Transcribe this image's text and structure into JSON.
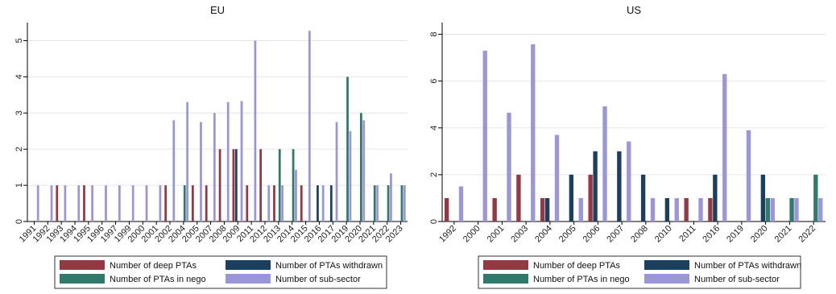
{
  "chart_data": [
    {
      "type": "bar",
      "title": "EU",
      "categories": [
        "1991",
        "1992",
        "1993",
        "1994",
        "1995",
        "1996",
        "1997",
        "1999",
        "2000",
        "2001",
        "2002",
        "2004",
        "2005",
        "2007",
        "2008",
        "2009",
        "2011",
        "2012",
        "2013",
        "2014",
        "2015",
        "2016",
        "2017",
        "2019",
        "2020",
        "2021",
        "2022",
        "2023"
      ],
      "series": [
        {
          "name": "Number of deep PTAs",
          "values": [
            0,
            0,
            1,
            0,
            1,
            0,
            0,
            0,
            0,
            0,
            1,
            0,
            1,
            1,
            2,
            2,
            1,
            2,
            1,
            0,
            1,
            0,
            0,
            0,
            0,
            0,
            0,
            0
          ]
        },
        {
          "name": "Number of PTAs withdrawn",
          "values": [
            0,
            0,
            0,
            0,
            0,
            0,
            0,
            0,
            0,
            0,
            0,
            0,
            0,
            0,
            0,
            2,
            0,
            0,
            0,
            0,
            0,
            1,
            1,
            0,
            0,
            0,
            0,
            0
          ]
        },
        {
          "name": "Number of PTAs in nego",
          "values": [
            0,
            0,
            0,
            0,
            0,
            0,
            0,
            0,
            0,
            0,
            0,
            1,
            0,
            0,
            0,
            0,
            0,
            0,
            2,
            2,
            0,
            0,
            0,
            4,
            3,
            1,
            1,
            1
          ]
        },
        {
          "name": "Number of sub-sector",
          "values": [
            1,
            1,
            1,
            1,
            1,
            1,
            1,
            1,
            1,
            1,
            2.8,
            3.3,
            2.75,
            3,
            3.3,
            3.33,
            5,
            1,
            1,
            1.43,
            5.27,
            1,
            2.75,
            2.5,
            2.8,
            1,
            1.33,
            1
          ]
        }
      ],
      "ylim": [
        0,
        5.5
      ],
      "yticks": [
        0,
        1,
        2,
        3,
        4,
        5
      ],
      "grid": true,
      "xlabel": "",
      "ylabel": ""
    },
    {
      "type": "bar",
      "title": "US",
      "categories": [
        "1992",
        "2000",
        "2001",
        "2003",
        "2004",
        "2005",
        "2006",
        "2007",
        "2008",
        "2010",
        "2011",
        "2016",
        "2019",
        "2020",
        "2021",
        "2022"
      ],
      "series": [
        {
          "name": "Number of deep PTAs",
          "values": [
            1,
            0,
            1,
            2,
            1,
            0,
            2,
            0,
            0,
            0,
            1,
            1,
            0,
            0,
            0,
            0
          ]
        },
        {
          "name": "Number of PTAs withdrawn",
          "values": [
            0,
            0,
            0,
            0,
            1,
            2,
            3,
            3,
            2,
            1,
            0,
            2,
            0,
            2,
            0,
            0
          ]
        },
        {
          "name": "Number of PTAs in nego",
          "values": [
            0,
            0,
            0,
            0,
            0,
            0,
            0,
            0,
            0,
            0,
            0,
            0,
            0,
            1,
            1,
            2
          ]
        },
        {
          "name": "Number of sub-sector",
          "values": [
            1.5,
            7.3,
            4.65,
            7.57,
            3.7,
            1,
            4.92,
            3.42,
            1,
            1,
            1,
            6.3,
            3.9,
            1,
            1,
            1
          ]
        }
      ],
      "ylim": [
        0,
        8.5
      ],
      "yticks": [
        0,
        2,
        4,
        6,
        8
      ],
      "grid": true,
      "xlabel": "",
      "ylabel": ""
    }
  ],
  "legend": {
    "placement": "bottom",
    "items": [
      {
        "label": "Number of deep PTAs",
        "color": "#963843"
      },
      {
        "label": "Number of PTAs withdrawn",
        "color": "#1b3f5f"
      },
      {
        "label": "Number of PTAs in nego",
        "color": "#2f7a6a"
      },
      {
        "label": "Number of sub-sector",
        "color": "#9b96d8"
      }
    ]
  },
  "colors": {
    "deep": "#963843",
    "withdrawn": "#1b3f5f",
    "nego": "#2f7a6a",
    "subsector": "#9b96d8"
  }
}
